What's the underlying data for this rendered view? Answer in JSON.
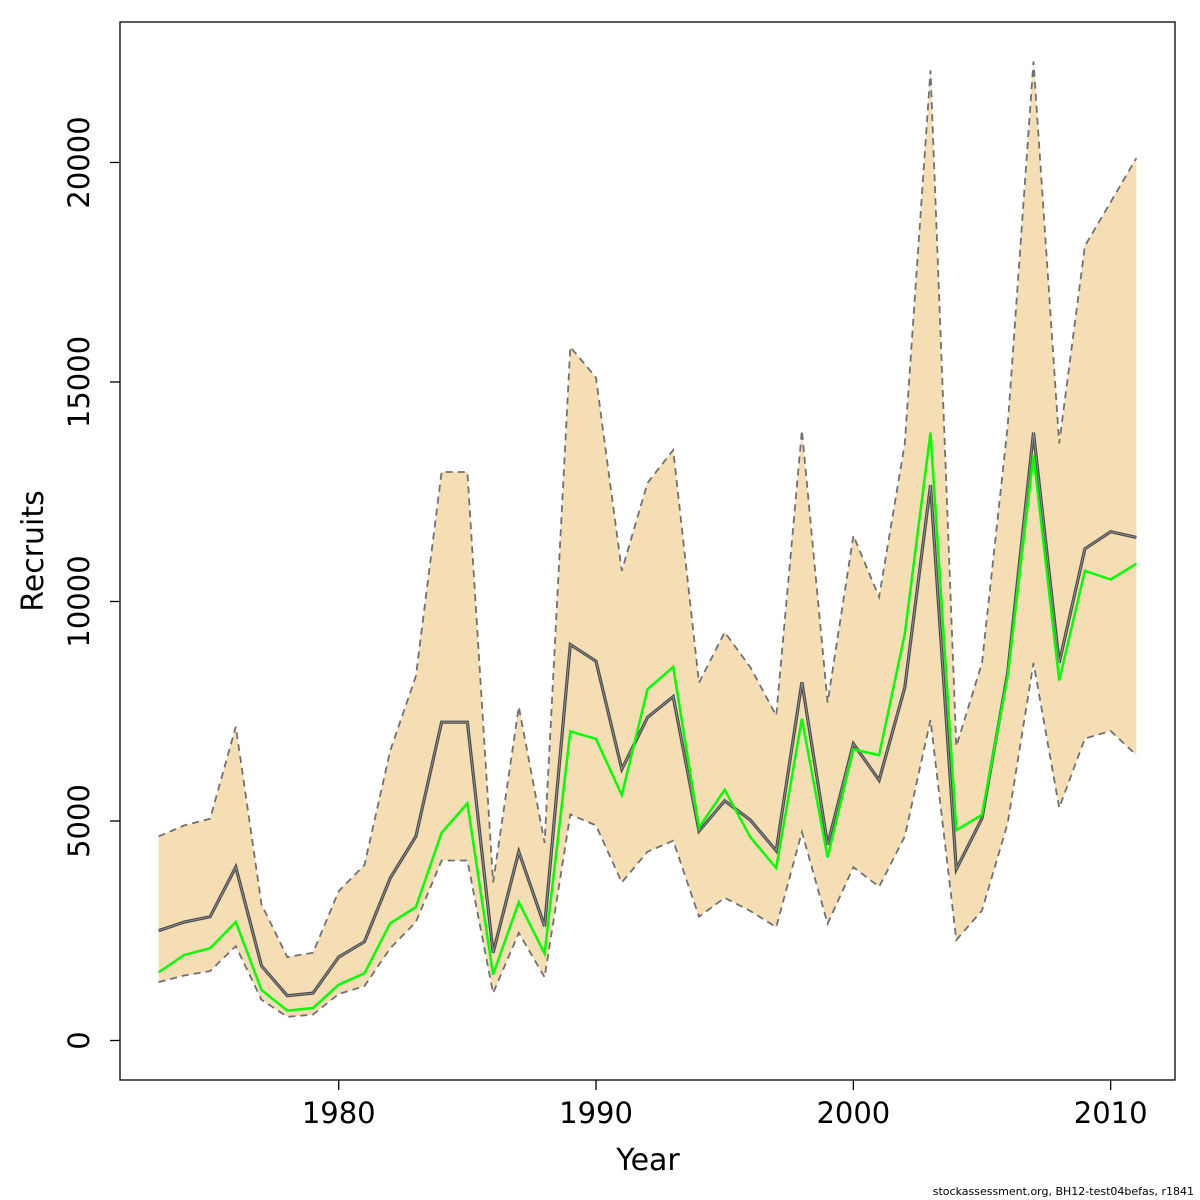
{
  "chart_data": {
    "type": "line",
    "title": "",
    "xlabel": "Year",
    "ylabel": "Recruits",
    "xlim": [
      1971.5,
      2012.5
    ],
    "ylim": [
      -900,
      23200
    ],
    "xticks": [
      1980,
      1990,
      2000,
      2010
    ],
    "yticks": [
      0,
      5000,
      10000,
      15000,
      20000
    ],
    "x": [
      1973,
      1974,
      1975,
      1976,
      1977,
      1978,
      1979,
      1980,
      1981,
      1982,
      1983,
      1984,
      1985,
      1986,
      1987,
      1988,
      1989,
      1990,
      1991,
      1992,
      1993,
      1994,
      1995,
      1996,
      1997,
      1998,
      1999,
      2000,
      2001,
      2002,
      2003,
      2004,
      2005,
      2006,
      2007,
      2008,
      2009,
      2010,
      2011
    ],
    "series": [
      {
        "role": "upper",
        "values": [
          4650,
          4900,
          5050,
          7150,
          3100,
          1900,
          2000,
          3400,
          4000,
          6600,
          8300,
          12950,
          12950,
          3600,
          7600,
          4500,
          15800,
          15100,
          10700,
          12700,
          13450,
          8150,
          9300,
          8500,
          7400,
          13900,
          7700,
          11500,
          10100,
          13600,
          22100,
          6700,
          8600,
          14000,
          22300,
          13600,
          18100,
          19100,
          20100
        ]
      },
      {
        "role": "lower",
        "values": [
          1330,
          1480,
          1580,
          2150,
          930,
          540,
          590,
          1060,
          1240,
          2100,
          2700,
          4100,
          4100,
          1080,
          2450,
          1440,
          5150,
          4900,
          3600,
          4300,
          4550,
          2820,
          3250,
          2950,
          2580,
          4750,
          2660,
          3950,
          3500,
          4650,
          7300,
          2290,
          2960,
          4950,
          8600,
          5300,
          6880,
          7050,
          6500
        ]
      },
      {
        "role": "estimate",
        "color": "#4d4d4d",
        "values": [
          2500,
          2700,
          2820,
          3950,
          1700,
          1020,
          1080,
          1900,
          2250,
          3700,
          4650,
          7250,
          7250,
          2000,
          4300,
          2600,
          9020,
          8640,
          6180,
          7360,
          7830,
          4770,
          5460,
          5020,
          4320,
          8160,
          4460,
          6760,
          5930,
          8040,
          12650,
          3900,
          5060,
          8380,
          13850,
          8600,
          11200,
          11590,
          11460
        ]
      },
      {
        "role": "true",
        "color": "#00ff00",
        "values": [
          1550,
          1950,
          2100,
          2700,
          1150,
          680,
          740,
          1270,
          1530,
          2670,
          3040,
          4730,
          5400,
          1500,
          3150,
          1980,
          7040,
          6870,
          5590,
          8000,
          8510,
          4850,
          5710,
          4630,
          3930,
          7330,
          4170,
          6630,
          6500,
          9260,
          13850,
          4790,
          5140,
          8300,
          13330,
          8200,
          10700,
          10500,
          10860
        ]
      }
    ],
    "band_color": "#f5deb3",
    "band_border_color": "#707070",
    "grid": false,
    "legend": "none"
  },
  "footer": "stockassessment.org, BH12-test04befas, r1841"
}
